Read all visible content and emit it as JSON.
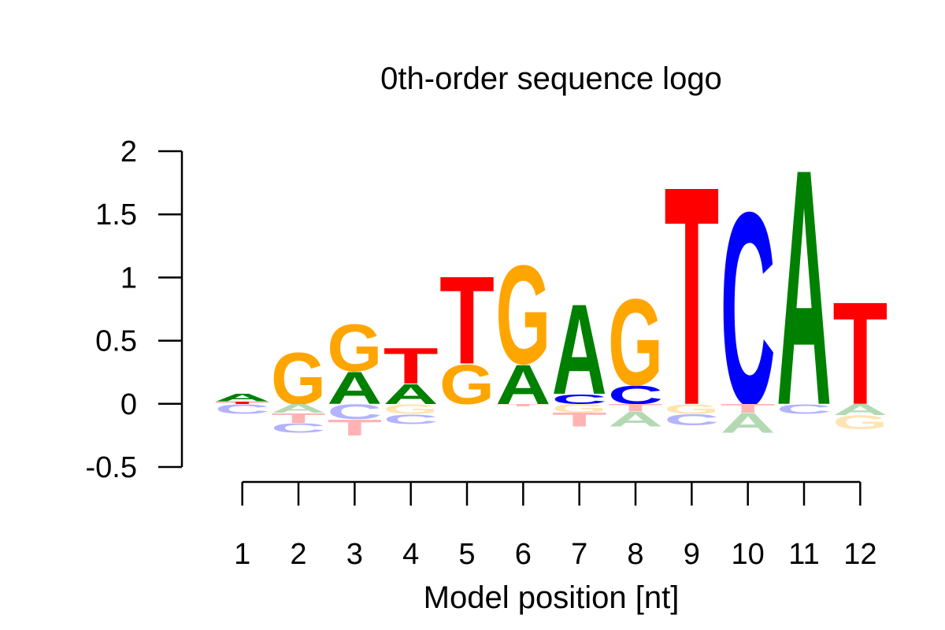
{
  "chart_data": {
    "type": "sequence-logo",
    "title": "0th-order sequence logo",
    "xlabel": "Model position [nt]",
    "ylabel": "",
    "ylim": [
      -0.5,
      2
    ],
    "y_ticks": [
      "-0.5",
      "0",
      "0.5",
      "1",
      "1.5",
      "2"
    ],
    "x_ticks": [
      "1",
      "2",
      "3",
      "4",
      "5",
      "6",
      "7",
      "8",
      "9",
      "10",
      "11",
      "12"
    ],
    "colors": {
      "A": "#008000",
      "C": "#0000ff",
      "G": "#ffa500",
      "T": "#ff0000",
      "A_neg": "#b3d9b3",
      "C_neg": "#b3b3ff",
      "G_neg": "#ffe4b3",
      "T_neg": "#ffb3b3"
    },
    "positions": [
      {
        "pos": "1",
        "positive": [
          {
            "letter": "T",
            "value": 0.02
          },
          {
            "letter": "A",
            "value": 0.06
          }
        ],
        "negative": [
          {
            "letter": "C",
            "value": -0.08
          }
        ]
      },
      {
        "pos": "2",
        "positive": [
          {
            "letter": "G",
            "value": 0.42
          }
        ],
        "negative": [
          {
            "letter": "A",
            "value": -0.07
          },
          {
            "letter": "T",
            "value": -0.08
          },
          {
            "letter": "C",
            "value": -0.08
          }
        ]
      },
      {
        "pos": "3",
        "positive": [
          {
            "letter": "A",
            "value": 0.26
          },
          {
            "letter": "G",
            "value": 0.38
          }
        ],
        "negative": [
          {
            "letter": "C",
            "value": -0.12
          },
          {
            "letter": "T",
            "value": -0.13
          }
        ]
      },
      {
        "pos": "4",
        "positive": [
          {
            "letter": "A",
            "value": 0.16
          },
          {
            "letter": "T",
            "value": 0.29
          }
        ],
        "negative": [
          {
            "letter": "G",
            "value": -0.08
          },
          {
            "letter": "C",
            "value": -0.08
          }
        ]
      },
      {
        "pos": "5",
        "positive": [
          {
            "letter": "G",
            "value": 0.32
          },
          {
            "letter": "T",
            "value": 0.71
          }
        ],
        "negative": []
      },
      {
        "pos": "6",
        "positive": [
          {
            "letter": "A",
            "value": 0.32
          },
          {
            "letter": "G",
            "value": 0.8
          }
        ],
        "negative": [
          {
            "letter": "T",
            "value": -0.02
          }
        ]
      },
      {
        "pos": "7",
        "positive": [
          {
            "letter": "C",
            "value": 0.08
          },
          {
            "letter": "A",
            "value": 0.73
          }
        ],
        "negative": [
          {
            "letter": "G",
            "value": -0.07
          },
          {
            "letter": "T",
            "value": -0.11
          }
        ]
      },
      {
        "pos": "8",
        "positive": [
          {
            "letter": "C",
            "value": 0.15
          },
          {
            "letter": "G",
            "value": 0.7
          }
        ],
        "negative": [
          {
            "letter": "T",
            "value": -0.06
          },
          {
            "letter": "A",
            "value": -0.12
          }
        ]
      },
      {
        "pos": "9",
        "positive": [
          {
            "letter": "T",
            "value": 1.77
          }
        ],
        "negative": [
          {
            "letter": "G",
            "value": -0.08
          },
          {
            "letter": "C",
            "value": -0.09
          }
        ]
      },
      {
        "pos": "10",
        "positive": [
          {
            "letter": "C",
            "value": 1.56
          }
        ],
        "negative": [
          {
            "letter": "T",
            "value": -0.07
          },
          {
            "letter": "A",
            "value": -0.16
          }
        ]
      },
      {
        "pos": "11",
        "positive": [
          {
            "letter": "A",
            "value": 1.91
          }
        ],
        "negative": [
          {
            "letter": "C",
            "value": -0.08
          }
        ]
      },
      {
        "pos": "12",
        "positive": [
          {
            "letter": "T",
            "value": 0.83
          }
        ],
        "negative": [
          {
            "letter": "A",
            "value": -0.09
          },
          {
            "letter": "G",
            "value": -0.11
          }
        ]
      }
    ]
  }
}
